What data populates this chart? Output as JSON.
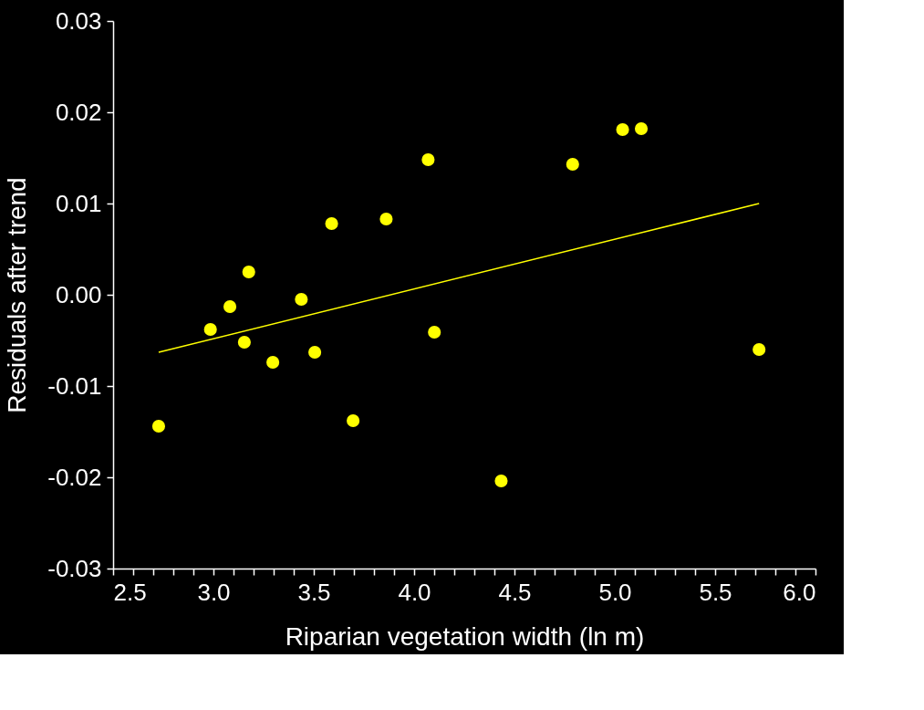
{
  "chart_data": {
    "type": "scatter",
    "xlabel": "Riparian vegetation width (ln m)",
    "ylabel": "Residuals after trend",
    "xlim": [
      2.5,
      6.0
    ],
    "ylim": [
      -0.03,
      0.03
    ],
    "xticks": [
      {
        "value": 2.5,
        "label": "2.5"
      },
      {
        "value": 2.6,
        "label": null
      },
      {
        "value": 2.7,
        "label": null
      },
      {
        "value": 2.8,
        "label": null
      },
      {
        "value": 2.9,
        "label": null
      },
      {
        "value": 3.0,
        "label": "3.0"
      },
      {
        "value": 3.1,
        "label": null
      },
      {
        "value": 3.2,
        "label": null
      },
      {
        "value": 3.3,
        "label": null
      },
      {
        "value": 3.4,
        "label": null
      },
      {
        "value": 3.5,
        "label": "3.5"
      },
      {
        "value": 3.6,
        "label": null
      },
      {
        "value": 3.7,
        "label": null
      },
      {
        "value": 3.8,
        "label": null
      },
      {
        "value": 3.9,
        "label": null
      },
      {
        "value": 4.0,
        "label": "4.0"
      },
      {
        "value": 4.1,
        "label": null
      },
      {
        "value": 4.2,
        "label": null
      },
      {
        "value": 4.3,
        "label": null
      },
      {
        "value": 4.4,
        "label": null
      },
      {
        "value": 4.5,
        "label": "4.5"
      },
      {
        "value": 4.6,
        "label": null
      },
      {
        "value": 4.7,
        "label": null
      },
      {
        "value": 4.8,
        "label": null
      },
      {
        "value": 4.9,
        "label": null
      },
      {
        "value": 5.0,
        "label": "5.0"
      },
      {
        "value": 5.1,
        "label": null
      },
      {
        "value": 5.2,
        "label": null
      },
      {
        "value": 5.3,
        "label": null
      },
      {
        "value": 5.4,
        "label": null
      },
      {
        "value": 5.5,
        "label": "5.5"
      },
      {
        "value": 5.6,
        "label": null
      },
      {
        "value": 5.7,
        "label": null
      },
      {
        "value": 5.8,
        "label": null
      },
      {
        "value": 5.9,
        "label": null
      },
      {
        "value": 6.0,
        "label": "6.0"
      }
    ],
    "yticks": [
      -0.03,
      -0.02,
      -0.01,
      {
        "value": 0,
        "label": "0.00"
      },
      0.01,
      0.02,
      0.03
    ],
    "grid": false,
    "series": [
      {
        "type": "scatter",
        "marker": "circle",
        "color": "#ffff00",
        "x": [
          2.727,
          2.985,
          3.082,
          3.154,
          3.176,
          3.296,
          3.438,
          3.505,
          3.589,
          3.696,
          3.861,
          4.07,
          4.101,
          4.434,
          4.79,
          5.039,
          5.132,
          5.719
        ],
        "values": [
          -0.0144,
          -0.0038,
          -0.0013,
          -0.0052,
          0.0025,
          -0.0074,
          -0.0005,
          -0.0063,
          0.0078,
          -0.0138,
          0.0083,
          0.0148,
          -0.0041,
          -0.0204,
          0.0143,
          0.0181,
          0.0182,
          -0.006
        ]
      },
      {
        "type": "line",
        "color": "#ffff00",
        "x": [
          2.727,
          5.719
        ],
        "values": [
          -0.0063,
          0.01
        ]
      }
    ]
  }
}
